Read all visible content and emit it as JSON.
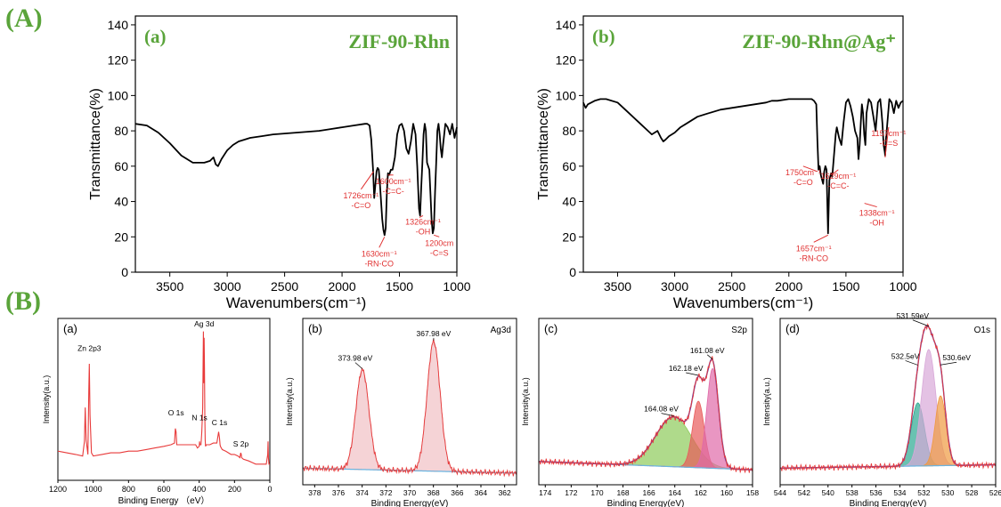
{
  "section_labels": {
    "a": "(A)",
    "b": "(B)"
  },
  "colors": {
    "green_label": "#5aa43a",
    "annotation_red": "#e03030",
    "ftir_line": "#000000",
    "xps_raw": "#e83a3a",
    "envelope": "#6a3aa0",
    "background_fit": "#6ab4e0"
  },
  "chart_data": [
    {
      "id": "ftir-a",
      "type": "line",
      "panel_label": "(a)",
      "title": "ZIF-90-Rhn",
      "xlabel": "Wavenumbers(cm⁻¹)",
      "ylabel": "Transmittance(%)",
      "xlim": [
        3800,
        1000
      ],
      "ylim": [
        0,
        145
      ],
      "x_ticks": [
        3500,
        3000,
        2500,
        2000,
        1500,
        1000
      ],
      "y_ticks": [
        0,
        20,
        40,
        60,
        80,
        100,
        120,
        140
      ],
      "series": [
        {
          "x": [
            3800,
            3700,
            3600,
            3500,
            3400,
            3300,
            3200,
            3150,
            3120,
            3100,
            3080,
            3050,
            3000,
            2950,
            2900,
            2850,
            2800,
            2700,
            2600,
            2500,
            2400,
            2300,
            2200,
            2100,
            2000,
            1900,
            1800,
            1780,
            1760,
            1745,
            1730,
            1720,
            1700,
            1690,
            1680,
            1670,
            1650,
            1640,
            1630,
            1620,
            1610,
            1600,
            1590,
            1575,
            1560,
            1540,
            1520,
            1500,
            1480,
            1460,
            1440,
            1420,
            1400,
            1380,
            1360,
            1345,
            1330,
            1320,
            1310,
            1300,
            1290,
            1280,
            1270,
            1260,
            1250,
            1240,
            1230,
            1220,
            1210,
            1200,
            1190,
            1180,
            1170,
            1160,
            1150,
            1140,
            1130,
            1120,
            1100,
            1080,
            1060,
            1040,
            1020,
            1000
          ],
          "y": [
            84,
            83,
            79,
            73,
            66,
            62,
            62,
            63,
            65,
            61,
            60,
            64,
            69,
            72,
            74,
            75,
            76,
            77,
            78,
            78.5,
            79,
            79.5,
            80,
            81,
            82,
            83,
            84,
            84,
            83,
            75,
            58,
            42,
            57,
            59,
            58,
            50,
            30,
            24,
            21,
            25,
            45,
            56,
            55,
            58,
            58,
            65,
            78,
            83,
            84,
            80,
            70,
            67,
            74,
            84,
            78,
            60,
            36,
            32,
            48,
            62,
            78,
            84,
            80,
            62,
            60,
            58,
            45,
            30,
            22,
            25,
            45,
            62,
            80,
            84,
            78,
            70,
            65,
            72,
            84,
            82,
            78,
            84,
            76,
            82
          ]
        }
      ],
      "annotations": [
        {
          "x": 1726,
          "y": 58,
          "text": [
            "1726cm⁻¹",
            "-C=O"
          ]
        },
        {
          "x": 1630,
          "y": 21,
          "text": [
            "1630cm⁻¹",
            "-RN-CO"
          ]
        },
        {
          "x": 1600,
          "y": 56,
          "text": [
            "1600cm⁻¹",
            "-C=C-"
          ]
        },
        {
          "x": 1326,
          "y": 32,
          "text": [
            "1326cm⁻¹",
            "-OH"
          ]
        },
        {
          "x": 1200,
          "y": 22,
          "text": [
            "1200cm",
            "-C=S"
          ]
        }
      ]
    },
    {
      "id": "ftir-b",
      "type": "line",
      "panel_label": "(b)",
      "title": "ZIF-90-Rhn@Ag⁺",
      "xlabel": "Wavenumbers(cm⁻¹)",
      "ylabel": "Transmittance(%)",
      "xlim": [
        3800,
        1000
      ],
      "ylim": [
        0,
        145
      ],
      "x_ticks": [
        3500,
        3000,
        2500,
        2000,
        1500,
        1000
      ],
      "y_ticks": [
        0,
        20,
        40,
        60,
        80,
        100,
        120,
        140
      ],
      "series": [
        {
          "x": [
            3800,
            3780,
            3760,
            3700,
            3650,
            3600,
            3500,
            3400,
            3300,
            3200,
            3150,
            3120,
            3100,
            3080,
            3050,
            3000,
            2950,
            2900,
            2850,
            2800,
            2700,
            2600,
            2500,
            2400,
            2300,
            2200,
            2150,
            2100,
            2000,
            1900,
            1800,
            1780,
            1760,
            1750,
            1740,
            1730,
            1720,
            1700,
            1690,
            1680,
            1670,
            1657,
            1645,
            1630,
            1620,
            1610,
            1600,
            1590,
            1580,
            1560,
            1540,
            1520,
            1500,
            1480,
            1460,
            1440,
            1420,
            1400,
            1390,
            1380,
            1370,
            1360,
            1350,
            1340,
            1330,
            1320,
            1300,
            1280,
            1260,
            1240,
            1220,
            1200,
            1190,
            1180,
            1170,
            1160,
            1157,
            1150,
            1140,
            1120,
            1100,
            1080,
            1060,
            1040,
            1020,
            1000
          ],
          "y": [
            96,
            93,
            95,
            97,
            98,
            98,
            96,
            90,
            84,
            78,
            80,
            76,
            74,
            75,
            77,
            79,
            82,
            84,
            86,
            88,
            90,
            92,
            93,
            94,
            95,
            96,
            97,
            97,
            98,
            98,
            98,
            97,
            95,
            75,
            58,
            60,
            55,
            50,
            57,
            60,
            58,
            22,
            52,
            56,
            54,
            62,
            70,
            78,
            82,
            76,
            72,
            85,
            96,
            98,
            94,
            88,
            80,
            76,
            64,
            72,
            85,
            95,
            90,
            78,
            72,
            90,
            98,
            96,
            88,
            80,
            96,
            98,
            92,
            84,
            72,
            68,
            66,
            75,
            82,
            98,
            96,
            90,
            97,
            93,
            96,
            97
          ]
        }
      ],
      "annotations": [
        {
          "x": 1750,
          "y": 58,
          "text": [
            "1750cm⁻¹",
            "-C=O"
          ]
        },
        {
          "x": 1657,
          "y": 22,
          "text": [
            "1657cm⁻¹",
            "-RN-CO"
          ]
        },
        {
          "x": 1629,
          "y": 56,
          "text": [
            "1629cm⁻¹",
            "-C=C-"
          ]
        },
        {
          "x": 1338,
          "y": 40,
          "text": [
            "1338cm⁻¹",
            "-OH"
          ]
        },
        {
          "x": 1157,
          "y": 66,
          "text": [
            "1157cm⁻¹",
            "-C=S"
          ]
        }
      ]
    },
    {
      "id": "xps-survey",
      "type": "line",
      "panel_label": "(a)",
      "corner_label": "",
      "xlabel": "Binding Energy （eV）",
      "ylabel": "Intensity(a.u.)",
      "xlim": [
        1200,
        0
      ],
      "ylim": [
        0,
        100
      ],
      "x_ticks": [
        1200,
        1000,
        800,
        600,
        400,
        200,
        0
      ],
      "series": [
        {
          "name": "survey",
          "x": [
            1200,
            1150,
            1100,
            1060,
            1050,
            1045,
            1040,
            1030,
            1025,
            1022,
            1018,
            1010,
            1000,
            950,
            900,
            850,
            800,
            750,
            700,
            650,
            600,
            560,
            540,
            535,
            531,
            527,
            520,
            500,
            450,
            420,
            410,
            400,
            398,
            396,
            390,
            385,
            380,
            376,
            374,
            372,
            370,
            368,
            366,
            364,
            360,
            350,
            340,
            320,
            300,
            290,
            285,
            282,
            280,
            270,
            250,
            220,
            200,
            180,
            170,
            165,
            162,
            160,
            150,
            120,
            100,
            80,
            60,
            40,
            20,
            12,
            10,
            8,
            5,
            0
          ],
          "y": [
            18,
            17,
            16,
            15,
            24,
            45,
            25,
            16,
            55,
            72,
            40,
            17,
            15,
            16,
            17,
            17,
            18,
            18,
            19,
            20,
            21,
            22,
            23,
            32,
            30,
            22,
            22,
            22,
            22,
            22,
            20,
            21,
            24,
            22,
            22,
            30,
            45,
            92,
            60,
            88,
            70,
            40,
            25,
            21,
            22,
            22,
            22,
            23,
            23,
            30,
            26,
            22,
            21,
            19,
            18,
            16,
            16,
            15,
            14,
            17,
            16,
            14,
            13,
            12,
            11,
            10,
            10,
            10,
            10,
            16,
            24,
            14,
            10,
            10
          ]
        }
      ],
      "labels": [
        {
          "text": "Zn 2p3",
          "x": 1022,
          "y": 80
        },
        {
          "text": "Ag 3d",
          "x": 372,
          "y": 95
        },
        {
          "text": "O 1s",
          "x": 531,
          "y": 40
        },
        {
          "text": "N 1s",
          "x": 398,
          "y": 37
        },
        {
          "text": "C 1s",
          "x": 285,
          "y": 34
        },
        {
          "text": "S 2p",
          "x": 164,
          "y": 21
        }
      ]
    },
    {
      "id": "xps-ag3d",
      "type": "line",
      "panel_label": "(b)",
      "corner_label": "Ag3d",
      "xlabel": "Binding Energy(eV)",
      "ylabel": "Intensity(a.u.)",
      "xlim": [
        379,
        361
      ],
      "ylim": [
        0,
        100
      ],
      "x_ticks": [
        378,
        376,
        374,
        372,
        370,
        368,
        366,
        364,
        362
      ],
      "peaks": [
        {
          "center": 373.98,
          "height": 60,
          "width": 0.55,
          "label": "373.98 eV"
        },
        {
          "center": 367.98,
          "height": 78,
          "width": 0.55,
          "label": "367.98 eV"
        }
      ],
      "background": [
        10,
        7
      ]
    },
    {
      "id": "xps-s2p",
      "type": "area",
      "panel_label": "(c)",
      "corner_label": "S2p",
      "xlabel": "Binding Energy(eV)",
      "ylabel": "Intensity(a.u.)",
      "xlim": [
        174.5,
        158
      ],
      "ylim": [
        0,
        100
      ],
      "x_ticks": [
        174,
        172,
        170,
        168,
        166,
        164,
        162,
        160,
        158
      ],
      "peaks": [
        {
          "center": 164.08,
          "height": 30,
          "width": 1.4,
          "label": "164.08 eV",
          "color": "#8dca5a"
        },
        {
          "center": 162.18,
          "height": 40,
          "width": 0.45,
          "label": "162.18 eV",
          "color": "#e85a5a"
        },
        {
          "center": 161.08,
          "height": 60,
          "width": 0.45,
          "label": "161.08 eV",
          "color": "#e06aa8"
        }
      ],
      "background": [
        14,
        9
      ]
    },
    {
      "id": "xps-o1s",
      "type": "area",
      "panel_label": "(d)",
      "corner_label": "O1s",
      "xlabel": "Binding Energy(eV)",
      "ylabel": "Intensity(a.u.)",
      "xlim": [
        544,
        526
      ],
      "ylim": [
        0,
        100
      ],
      "x_ticks": [
        544,
        542,
        540,
        538,
        536,
        534,
        532,
        530,
        528,
        526
      ],
      "peaks": [
        {
          "center": 532.5,
          "height": 38,
          "width": 0.55,
          "label": "532.5eV",
          "color": "#2aa890"
        },
        {
          "center": 531.59,
          "height": 70,
          "width": 0.6,
          "label": "531.59eV",
          "color": "#d8a8d8"
        },
        {
          "center": 530.6,
          "height": 42,
          "width": 0.45,
          "label": "530.6eV",
          "color": "#f09a40"
        }
      ],
      "background": [
        10,
        12
      ]
    }
  ]
}
